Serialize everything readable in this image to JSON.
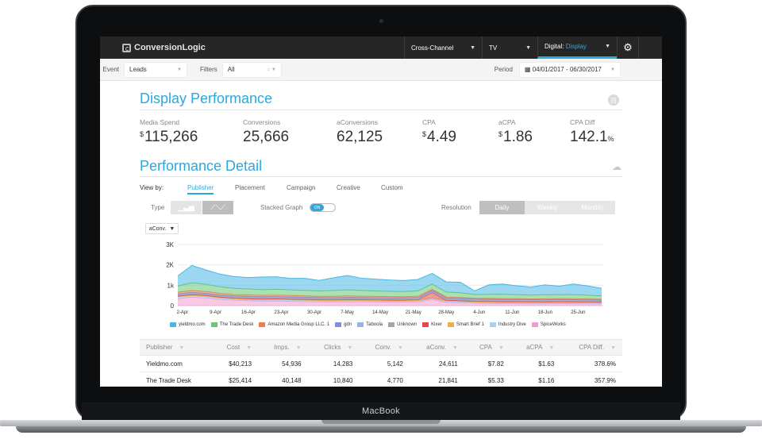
{
  "device": {
    "label": "MacBook"
  },
  "app": {
    "name": "ConversionLogic",
    "nav": [
      {
        "label": "Cross-Channel",
        "value": ""
      },
      {
        "label": "TV",
        "value": ""
      },
      {
        "label": "Digital:",
        "value": "Display"
      }
    ],
    "gear_icon": "gear-icon"
  },
  "filters": {
    "event_label": "Event",
    "event_value": "Leads",
    "filters_label": "Filters",
    "filters_value": "All",
    "period_label": "Period",
    "period_value": "04/01/2017 - 06/30/2017"
  },
  "summary": {
    "title": "Display Performance",
    "metrics": [
      {
        "label": "Media Spend",
        "prefix": "$",
        "value": "115,266",
        "suffix": ""
      },
      {
        "label": "Conversions",
        "prefix": "",
        "value": "25,666",
        "suffix": ""
      },
      {
        "label": "aConversions",
        "prefix": "",
        "value": "62,125",
        "suffix": ""
      },
      {
        "label": "CPA",
        "prefix": "$",
        "value": "4.49",
        "suffix": ""
      },
      {
        "label": "aCPA",
        "prefix": "$",
        "value": "1.86",
        "suffix": ""
      },
      {
        "label": "CPA Diff",
        "prefix": "",
        "value": "142.1",
        "suffix": "%"
      }
    ]
  },
  "detail": {
    "title": "Performance Detail",
    "view_by_label": "View by:",
    "tabs": [
      "Publisher",
      "Placement",
      "Campaign",
      "Creative",
      "Custom"
    ],
    "active_tab": "Publisher",
    "type_label": "Type",
    "stacked_label": "Stacked Graph",
    "stacked_state": "ON",
    "resolution_label": "Resolution",
    "resolutions": [
      "Daily",
      "Weekly",
      "Monthly"
    ],
    "active_resolution": "Daily",
    "metric_select": "aConv."
  },
  "chart_data": {
    "type": "area",
    "stacked": true,
    "ylim": [
      0,
      3000
    ],
    "yticks": [
      "0",
      "1k",
      "2K",
      "3K"
    ],
    "ytick_values": [
      0,
      1000,
      2000,
      3000
    ],
    "x_tick_labels": [
      "2-Apr",
      "9-Apr",
      "16-Apr",
      "23-Apr",
      "30-Apr",
      "7-May",
      "14-May",
      "21-May",
      "28-May",
      "4-Jun",
      "11-Jun",
      "18-Jun",
      "25-Jun"
    ],
    "x": [
      "1-Apr",
      "4-Apr",
      "7-Apr",
      "10-Apr",
      "13-Apr",
      "16-Apr",
      "19-Apr",
      "22-Apr",
      "25-Apr",
      "28-Apr",
      "1-May",
      "4-May",
      "7-May",
      "10-May",
      "13-May",
      "16-May",
      "19-May",
      "22-May",
      "25-May",
      "28-May",
      "31-May",
      "3-Jun",
      "6-Jun",
      "9-Jun",
      "12-Jun",
      "15-Jun",
      "18-Jun",
      "21-Jun",
      "24-Jun",
      "27-Jun",
      "30-Jun"
    ],
    "series": [
      {
        "name": "SpiceWorks",
        "color": "#f29bd0",
        "values": [
          350,
          420,
          380,
          300,
          260,
          240,
          220,
          230,
          210,
          200,
          190,
          180,
          200,
          190,
          180,
          170,
          175,
          185,
          300,
          160,
          150,
          120,
          110,
          100,
          100,
          95,
          90,
          100,
          95,
          90,
          80
        ]
      },
      {
        "name": "Industry Dive",
        "color": "#a9d0ef",
        "values": [
          60,
          60,
          55,
          55,
          50,
          50,
          50,
          50,
          50,
          50,
          45,
          45,
          45,
          45,
          45,
          45,
          45,
          45,
          45,
          45,
          40,
          40,
          40,
          40,
          40,
          40,
          40,
          40,
          40,
          40,
          40
        ]
      },
      {
        "name": "Smart Brief 1",
        "color": "#e9b14c",
        "values": [
          40,
          40,
          40,
          40,
          35,
          35,
          35,
          35,
          35,
          35,
          35,
          35,
          35,
          35,
          35,
          35,
          35,
          35,
          35,
          35,
          30,
          30,
          30,
          30,
          30,
          30,
          30,
          30,
          30,
          30,
          30
        ]
      },
      {
        "name": "Kixer",
        "color": "#e8464c",
        "values": [
          30,
          30,
          30,
          30,
          30,
          30,
          30,
          30,
          30,
          30,
          30,
          30,
          30,
          30,
          30,
          30,
          30,
          30,
          260,
          30,
          30,
          30,
          30,
          30,
          30,
          30,
          30,
          30,
          30,
          30,
          30
        ]
      },
      {
        "name": "Unknown",
        "color": "#a5a5a5",
        "values": [
          30,
          30,
          30,
          30,
          30,
          30,
          30,
          30,
          30,
          30,
          30,
          30,
          30,
          30,
          30,
          30,
          30,
          30,
          30,
          30,
          30,
          30,
          30,
          30,
          30,
          30,
          30,
          30,
          30,
          30,
          30
        ]
      },
      {
        "name": "Taboola",
        "color": "#9ab0e6",
        "values": [
          40,
          40,
          40,
          40,
          40,
          40,
          40,
          40,
          40,
          40,
          40,
          40,
          40,
          40,
          40,
          40,
          40,
          40,
          40,
          40,
          40,
          40,
          40,
          40,
          40,
          40,
          40,
          40,
          40,
          40,
          40
        ]
      },
      {
        "name": "gdn",
        "color": "#7f8fd8",
        "values": [
          30,
          30,
          30,
          30,
          30,
          30,
          30,
          30,
          30,
          30,
          30,
          30,
          30,
          30,
          30,
          30,
          30,
          30,
          30,
          30,
          30,
          30,
          30,
          30,
          30,
          30,
          30,
          30,
          30,
          30,
          30
        ]
      },
      {
        "name": "Amazon Media Group LLC. 1",
        "color": "#f07d4d",
        "values": [
          80,
          90,
          85,
          80,
          70,
          75,
          70,
          65,
          70,
          65,
          60,
          65,
          70,
          65,
          60,
          60,
          55,
          60,
          60,
          55,
          50,
          45,
          45,
          50,
          45,
          40,
          45,
          45,
          40,
          40,
          35
        ]
      },
      {
        "name": "The Trade Desk",
        "color": "#68c772",
        "values": [
          300,
          380,
          360,
          320,
          300,
          290,
          280,
          300,
          280,
          270,
          260,
          290,
          300,
          280,
          270,
          260,
          250,
          270,
          260,
          240,
          230,
          180,
          200,
          210,
          190,
          180,
          200,
          190,
          210,
          180,
          160
        ]
      },
      {
        "name": "yieldmo.com",
        "color": "#49b7e4",
        "values": [
          500,
          850,
          700,
          620,
          580,
          560,
          620,
          600,
          560,
          590,
          520,
          620,
          700,
          600,
          580,
          560,
          540,
          560,
          520,
          500,
          520,
          180,
          460,
          500,
          440,
          400,
          480,
          420,
          520,
          460,
          380
        ]
      }
    ]
  },
  "table": {
    "columns": [
      "Publisher",
      "Cost",
      "Imps.",
      "Clicks",
      "Conv.",
      "aConv.",
      "CPA",
      "aCPA",
      "CPA Diff."
    ],
    "rows": [
      [
        "Yieldmo.com",
        "$40,213",
        "54,936",
        "14,283",
        "5,142",
        "24,611",
        "$7.82",
        "$1.63",
        "378.6%"
      ],
      [
        "The Trade Desk",
        "$25,414",
        "40,148",
        "10,840",
        "4,770",
        "21,841",
        "$5.33",
        "$1.16",
        "357.9%"
      ]
    ]
  }
}
